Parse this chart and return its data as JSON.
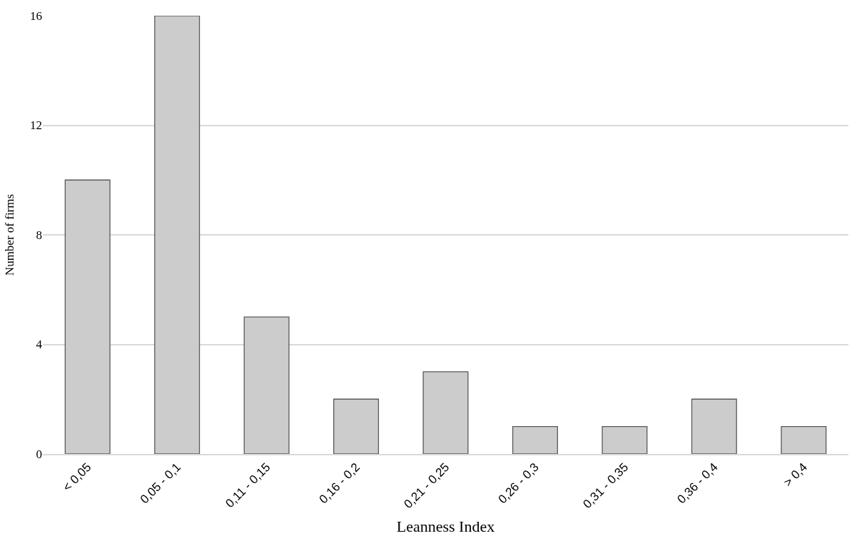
{
  "chart_data": {
    "type": "bar",
    "categories": [
      "< 0,05",
      "0,05 - 0,1",
      "0,11 - 0,15",
      "0,16 - 0,2",
      "0,21 - 0,25",
      "0,26 - 0,3",
      "0,31 - 0,35",
      "0,36 - 0,4",
      "> 0,4"
    ],
    "values": [
      10,
      16,
      5,
      2,
      3,
      1,
      1,
      2,
      1
    ],
    "color": "#cccccc",
    "xlabel": "Leanness Index",
    "ylabel": "Number of firms",
    "ylim": [
      0,
      16
    ],
    "yticks": [
      0,
      4,
      8,
      12,
      16
    ],
    "grid": "y",
    "legend": false
  }
}
